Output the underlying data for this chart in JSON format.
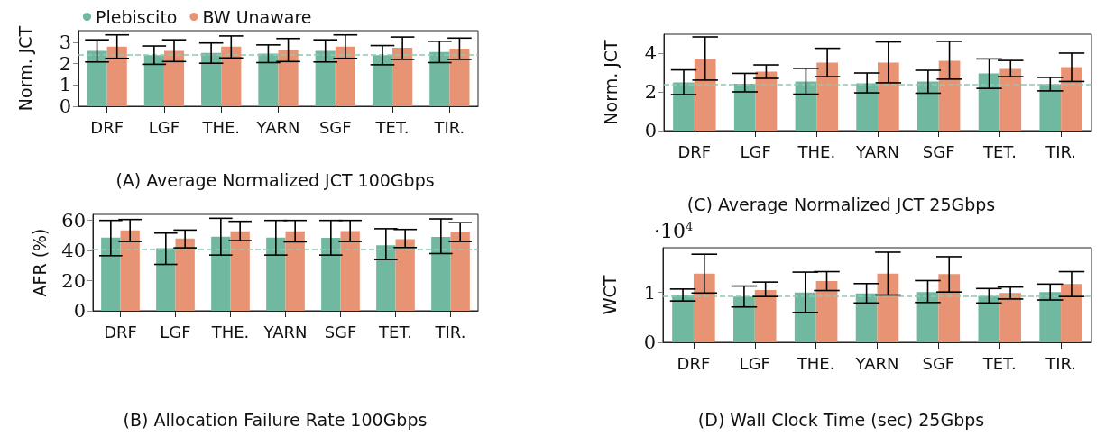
{
  "chart_data": [
    {
      "type": "bar",
      "title": "(A) Average Normalized JCT 100Gbps",
      "ylabel": "Norm. JCT",
      "categories": [
        "DRF",
        "LGF",
        "THE.",
        "YARN",
        "SGF",
        "TET.",
        "TIR."
      ],
      "ylim": [
        0,
        3.55
      ],
      "yticks": [
        0,
        1,
        2,
        3
      ],
      "grid": false,
      "legend": "top",
      "series": [
        {
          "name": "Plebiscito",
          "color": "#70b8a0",
          "values": [
            2.6,
            2.4,
            2.5,
            2.47,
            2.6,
            2.4,
            2.55
          ],
          "errors": [
            [
              2.08,
              3.12
            ],
            [
              1.97,
              2.83
            ],
            [
              2.02,
              2.97
            ],
            [
              2.05,
              2.88
            ],
            [
              2.08,
              3.12
            ],
            [
              1.95,
              2.85
            ],
            [
              2.05,
              3.05
            ]
          ]
        },
        {
          "name": "BW Unaware",
          "color": "#e89474",
          "values": [
            2.8,
            2.6,
            2.8,
            2.63,
            2.8,
            2.75,
            2.7
          ],
          "errors": [
            [
              2.25,
              3.35
            ],
            [
              2.1,
              3.12
            ],
            [
              2.27,
              3.3
            ],
            [
              2.1,
              3.18
            ],
            [
              2.25,
              3.35
            ],
            [
              2.2,
              3.25
            ],
            [
              2.2,
              3.2
            ]
          ]
        }
      ],
      "ref_lines": [
        {
          "axis": "y",
          "value": 2.4,
          "color": "#8cc9b0",
          "line_style": "dashed"
        }
      ]
    },
    {
      "type": "bar",
      "title": "(C) Average Normalized JCT 25Gbps",
      "ylabel": "Norm. JCT",
      "categories": [
        "DRF",
        "LGF",
        "THE.",
        "YARN",
        "SGF",
        "TET.",
        "TIR."
      ],
      "ylim": [
        0,
        5
      ],
      "yticks": [
        0,
        2,
        4
      ],
      "grid": false,
      "series": [
        {
          "color": "#70b8a0",
          "values": [
            2.5,
            2.43,
            2.55,
            2.45,
            2.55,
            2.97,
            2.41
          ],
          "errors": [
            [
              1.87,
              3.15
            ],
            [
              2.01,
              2.97
            ],
            [
              1.89,
              3.23
            ],
            [
              1.96,
              2.99
            ],
            [
              1.94,
              3.13
            ],
            [
              2.19,
              3.72
            ],
            [
              2.06,
              2.76
            ]
          ]
        },
        {
          "color": "#e89474",
          "values": [
            3.71,
            3.06,
            3.53,
            3.53,
            3.62,
            3.2,
            3.3
          ],
          "errors": [
            [
              2.62,
              4.86
            ],
            [
              2.71,
              3.41
            ],
            [
              2.8,
              4.27
            ],
            [
              2.48,
              4.6
            ],
            [
              2.67,
              4.63
            ],
            [
              2.8,
              3.64
            ],
            [
              2.55,
              4.02
            ]
          ]
        }
      ],
      "ref_lines": [
        {
          "axis": "y",
          "value": 2.4,
          "color": "#8cc9b0",
          "line_style": "dashed"
        }
      ]
    },
    {
      "type": "bar",
      "title": "(B) Allocation Failure Rate 100Gbps",
      "ylabel": "AFR (%)",
      "categories": [
        "DRF",
        "LGF",
        "THE.",
        "YARN",
        "SGF",
        "TET.",
        "TIR."
      ],
      "ylim": [
        0,
        64
      ],
      "yticks": [
        0,
        20,
        40,
        60
      ],
      "grid": false,
      "series": [
        {
          "color": "#70b8a0",
          "values": [
            48.6,
            41.6,
            49.2,
            48.6,
            48.5,
            43.5,
            49
          ],
          "errors": [
            [
              36.6,
              60
            ],
            [
              30.8,
              51.6
            ],
            [
              37,
              61.4
            ],
            [
              37,
              60
            ],
            [
              37,
              60
            ],
            [
              34,
              54.5
            ],
            [
              38,
              61
            ]
          ]
        },
        {
          "color": "#e89474",
          "values": [
            53.4,
            48,
            52.8,
            52.8,
            53,
            47.5,
            52.5
          ],
          "errors": [
            [
              46,
              60.6
            ],
            [
              41.8,
              53.6
            ],
            [
              46.6,
              59.4
            ],
            [
              45.8,
              60
            ],
            [
              46,
              60
            ],
            [
              42,
              54
            ],
            [
              46,
              58.5
            ]
          ]
        }
      ],
      "ref_lines": [
        {
          "axis": "y",
          "value": 41,
          "color": "#8cc9b0",
          "line_style": "dashed"
        }
      ]
    },
    {
      "type": "bar",
      "title": "(D) Wall Clock Time (sec) 25Gbps",
      "ylabel": "WCT",
      "annotations": [
        "·10$^{4}$"
      ],
      "categories": [
        "DRF",
        "LGF",
        "THE.",
        "YARN",
        "SGF",
        "TET.",
        "TIR."
      ],
      "ylim": [
        0,
        1.9
      ],
      "yticks": [
        0,
        1
      ],
      "grid": false,
      "series": [
        {
          "color": "#70b8a0",
          "values": [
            0.95,
            0.92,
            1.0,
            0.98,
            1.01,
            0.93,
            1.01
          ],
          "errors": [
            [
              0.83,
              1.07
            ],
            [
              0.71,
              1.13
            ],
            [
              0.6,
              1.41
            ],
            [
              0.79,
              1.18
            ],
            [
              0.8,
              1.24
            ],
            [
              0.79,
              1.08
            ],
            [
              0.85,
              1.17
            ]
          ]
        },
        {
          "color": "#e89474",
          "values": [
            1.38,
            1.05,
            1.23,
            1.38,
            1.37,
            0.99,
            1.17
          ],
          "errors": [
            [
              0.99,
              1.77
            ],
            [
              0.92,
              1.21
            ],
            [
              1.04,
              1.42
            ],
            [
              0.95,
              1.81
            ],
            [
              1.01,
              1.72
            ],
            [
              0.87,
              1.11
            ],
            [
              0.92,
              1.42
            ]
          ]
        }
      ],
      "ref_lines": [
        {
          "axis": "y",
          "value": 0.93,
          "color": "#8cc9b0",
          "line_style": "dashed"
        }
      ]
    }
  ]
}
